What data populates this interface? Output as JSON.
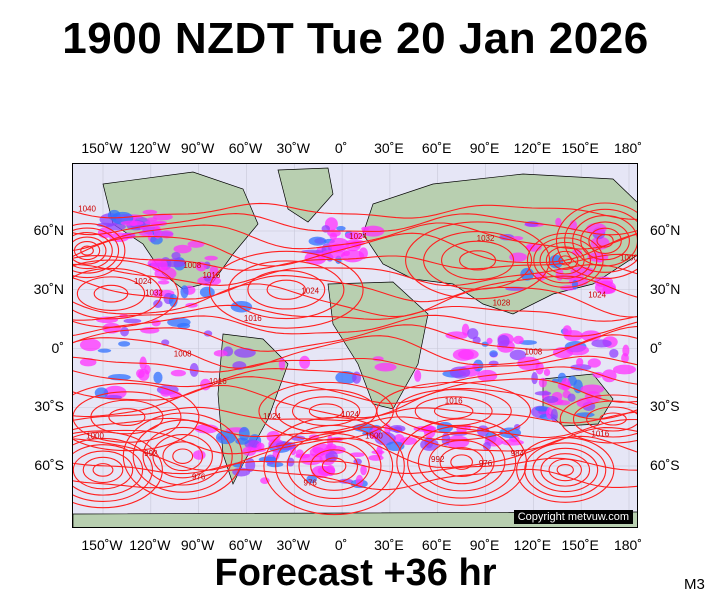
{
  "header": {
    "title": "1900 NZDT Tue 20 Jan 2026"
  },
  "footer": {
    "forecast": "Forecast +36 hr",
    "model": "M3"
  },
  "map": {
    "copyright": "Copyright metvuw.com",
    "lon_labels": [
      "150˚W",
      "120˚W",
      "90˚W",
      "60˚W",
      "30˚W",
      "0˚",
      "30˚E",
      "60˚E",
      "90˚E",
      "120˚E",
      "150˚E",
      "180˚"
    ],
    "lat_labels": [
      "60˚N",
      "30˚N",
      "0˚",
      "30˚S",
      "60˚S"
    ],
    "lon_values": [
      -150,
      -120,
      -90,
      -60,
      -30,
      0,
      30,
      60,
      90,
      120,
      150,
      180
    ],
    "lat_values": [
      60,
      30,
      0,
      -30,
      -60
    ],
    "pressure_labels": [
      {
        "text": "1040",
        "lon": -160,
        "lat": 70
      },
      {
        "text": "1024",
        "lon": -125,
        "lat": 33
      },
      {
        "text": "1032",
        "lon": -118,
        "lat": 27
      },
      {
        "text": "1016",
        "lon": -82,
        "lat": 36
      },
      {
        "text": "1008",
        "lon": -94,
        "lat": 41
      },
      {
        "text": "1024",
        "lon": -20,
        "lat": 28
      },
      {
        "text": "1016",
        "lon": -56,
        "lat": 14
      },
      {
        "text": "1024",
        "lon": 10,
        "lat": 56
      },
      {
        "text": "1032",
        "lon": 90,
        "lat": 55
      },
      {
        "text": "1028",
        "lon": 100,
        "lat": 22
      },
      {
        "text": "1008",
        "lon": -100,
        "lat": -4
      },
      {
        "text": "1016",
        "lon": -78,
        "lat": -18
      },
      {
        "text": "1024",
        "lon": -44,
        "lat": -36
      },
      {
        "text": "1024",
        "lon": 5,
        "lat": -35
      },
      {
        "text": "1016",
        "lon": 70,
        "lat": -28
      },
      {
        "text": "1008",
        "lon": 120,
        "lat": -3
      },
      {
        "text": "1000",
        "lon": -155,
        "lat": -46
      },
      {
        "text": "992",
        "lon": -120,
        "lat": -55
      },
      {
        "text": "1000",
        "lon": 20,
        "lat": -46
      },
      {
        "text": "992",
        "lon": 60,
        "lat": -58
      },
      {
        "text": "976",
        "lon": 90,
        "lat": -60
      },
      {
        "text": "984",
        "lon": 110,
        "lat": -55
      },
      {
        "text": "976",
        "lon": -90,
        "lat": -67
      },
      {
        "text": "976",
        "lon": -20,
        "lat": -70
      },
      {
        "text": "1016",
        "lon": 162,
        "lat": -45
      },
      {
        "text": "1000",
        "lon": 180,
        "lat": 45
      },
      {
        "text": "1024",
        "lon": 160,
        "lat": 26
      }
    ],
    "highs": [
      {
        "lon": -35,
        "lat": 30,
        "rx": 32,
        "ry": 16
      },
      {
        "lon": -145,
        "lat": 28,
        "rx": 28,
        "ry": 14
      },
      {
        "lon": 85,
        "lat": 45,
        "rx": 30,
        "ry": 16
      },
      {
        "lon": -135,
        "lat": -35,
        "rx": 30,
        "ry": 14
      },
      {
        "lon": -10,
        "lat": -32,
        "rx": 28,
        "ry": 12
      },
      {
        "lon": 70,
        "lat": -32,
        "rx": 32,
        "ry": 12
      },
      {
        "lon": 170,
        "lat": -36,
        "rx": 22,
        "ry": 10
      }
    ],
    "lows": [
      {
        "lon": -150,
        "lat": -62,
        "rx": 22,
        "ry": 14
      },
      {
        "lon": -100,
        "lat": -55,
        "rx": 22,
        "ry": 16
      },
      {
        "lon": -5,
        "lat": -60,
        "rx": 26,
        "ry": 18
      },
      {
        "lon": 75,
        "lat": -58,
        "rx": 24,
        "ry": 16
      },
      {
        "lon": 165,
        "lat": 55,
        "rx": 18,
        "ry": 14
      },
      {
        "lon": 140,
        "lat": 45,
        "rx": 14,
        "ry": 10
      },
      {
        "lon": -160,
        "lat": 50,
        "rx": 14,
        "ry": 10
      },
      {
        "lon": 140,
        "lat": -62,
        "rx": 18,
        "ry": 12
      }
    ],
    "colors": {
      "ocean": "#e6e6f6",
      "land": "#b8cfb0",
      "isobar": "#ff2020",
      "rain_magenta": "#ff30ff",
      "rain_purple": "#9040ff",
      "rain_blue": "#3070ff",
      "grid": "#c8c8d8"
    }
  }
}
